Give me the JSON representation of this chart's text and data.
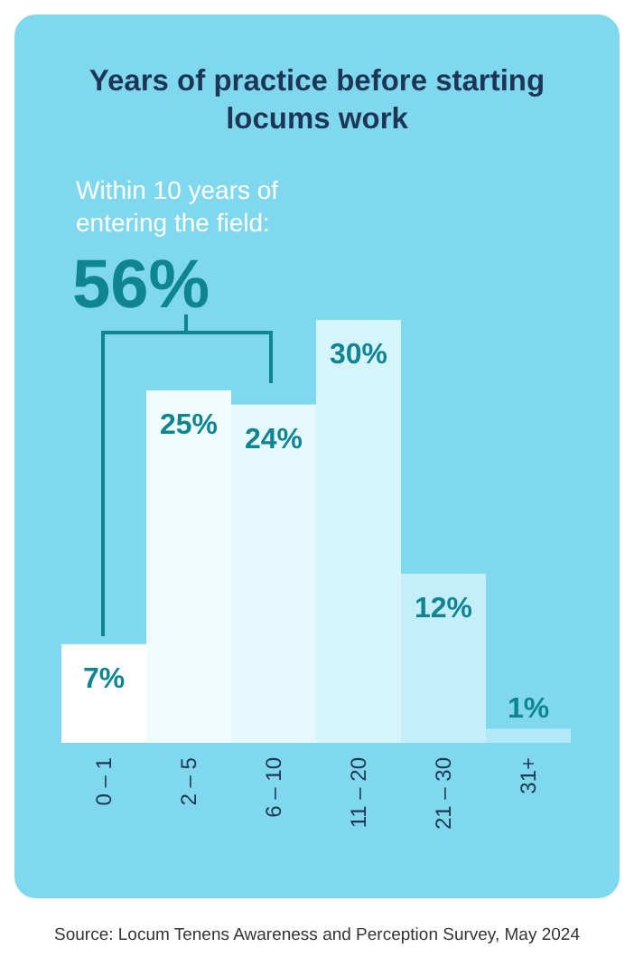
{
  "chart_data": {
    "type": "bar",
    "title": "Years of practice before starting locums work",
    "categories": [
      "0 – 1",
      "2 – 5",
      "6 – 10",
      "11 – 20",
      "21 – 30",
      "31+"
    ],
    "values": [
      7,
      25,
      24,
      30,
      12,
      1
    ],
    "colors": [
      "#ffffff",
      "#f0fbfe",
      "#e4f8fd",
      "#d5f4fc",
      "#c4effa",
      "#b3eaf8"
    ],
    "value_labels": [
      "7%",
      "25%",
      "24%",
      "30%",
      "12%",
      "1%"
    ],
    "annotations": [
      "Within 10 years of entering the field:",
      "56%",
      "Source: Locum Tenens Awareness and Perception Survey, May 2024"
    ]
  }
}
